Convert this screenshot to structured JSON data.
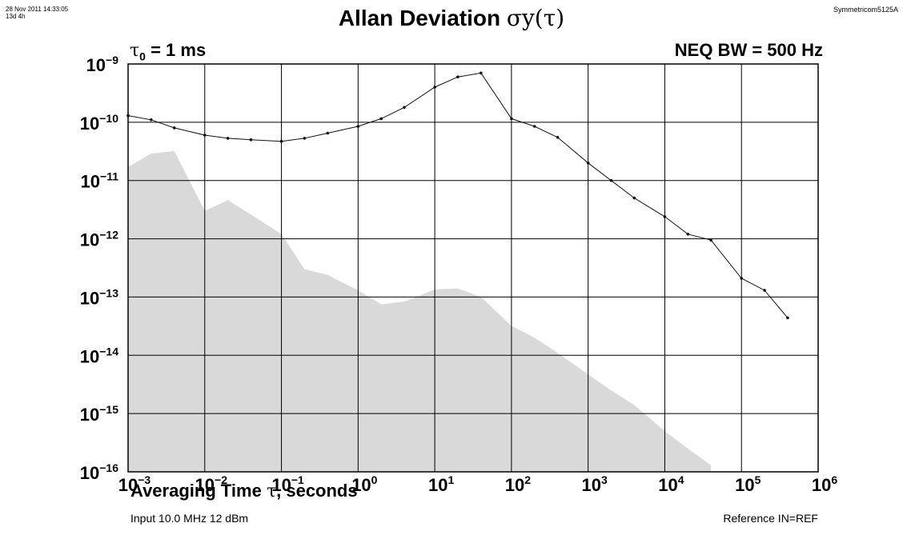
{
  "header": {
    "timestamp_line1": "28 Nov 2011 14:33:05",
    "timestamp_line2": "13d 4h",
    "title": "Allan Deviation",
    "title_symbol": "σy(τ)",
    "instrument": "Symmetricom5125A",
    "tau0_symbol": "τ",
    "tau0_sub": "0",
    "tau0_value": " = 1 ms",
    "neq_bw": "NEQ BW = 500 Hz"
  },
  "footer": {
    "xlabel_before": "Averaging Time ",
    "xlabel_symbol": "τ",
    "xlabel_after": ", seconds",
    "input": "Input 10.0 MHz 12 dBm",
    "reference": "Reference IN=REF"
  },
  "colors": {
    "line": "#111111",
    "noise_floor": "#d9d9d9",
    "grid": "#000000"
  },
  "chart_data": {
    "type": "line",
    "x_scale": "log",
    "y_scale": "log",
    "xlim": [
      0.001,
      1000000
    ],
    "ylim": [
      1e-16,
      1e-09
    ],
    "x_ticks": [
      {
        "base": "10",
        "exp": "−3",
        "value": 0.001
      },
      {
        "base": "10",
        "exp": "−2",
        "value": 0.01
      },
      {
        "base": "10",
        "exp": "−1",
        "value": 0.1
      },
      {
        "base": "10",
        "exp": "0",
        "value": 1
      },
      {
        "base": "10",
        "exp": "1",
        "value": 10
      },
      {
        "base": "10",
        "exp": "2",
        "value": 100
      },
      {
        "base": "10",
        "exp": "3",
        "value": 1000
      },
      {
        "base": "10",
        "exp": "4",
        "value": 10000
      },
      {
        "base": "10",
        "exp": "5",
        "value": 100000
      },
      {
        "base": "10",
        "exp": "6",
        "value": 1000000
      }
    ],
    "y_ticks": [
      {
        "base": "10",
        "exp": "−9",
        "value": 1e-09
      },
      {
        "base": "10",
        "exp": "−10",
        "value": 1e-10
      },
      {
        "base": "10",
        "exp": "−11",
        "value": 1e-11
      },
      {
        "base": "10",
        "exp": "−12",
        "value": 1e-12
      },
      {
        "base": "10",
        "exp": "−13",
        "value": 1e-13
      },
      {
        "base": "10",
        "exp": "−14",
        "value": 1e-14
      },
      {
        "base": "10",
        "exp": "−15",
        "value": 1e-15
      },
      {
        "base": "10",
        "exp": "−16",
        "value": 1e-16
      }
    ],
    "grid": true,
    "series": [
      {
        "kind": "line",
        "markers": true,
        "x": [
          0.001,
          0.002,
          0.004,
          0.01,
          0.02,
          0.04,
          0.1,
          0.2,
          0.4,
          1,
          2,
          4,
          10,
          20,
          40,
          100,
          200,
          400,
          1000,
          2000,
          4000,
          10000,
          20000,
          40000,
          100000,
          200000,
          400000
        ],
        "y": [
          1.3e-10,
          1.1e-10,
          8e-11,
          6e-11,
          5.3e-11,
          5e-11,
          4.7e-11,
          5.3e-11,
          6.5e-11,
          8.5e-11,
          1.15e-10,
          1.8e-10,
          4e-10,
          6e-10,
          7e-10,
          1.15e-10,
          8.5e-11,
          5.5e-11,
          2e-11,
          1e-11,
          5e-12,
          2.4e-12,
          1.2e-12,
          9.5e-13,
          2.1e-13,
          1.3e-13,
          4.4e-14
        ]
      },
      {
        "kind": "area",
        "x": [
          0.001,
          0.002,
          0.004,
          0.01,
          0.02,
          0.04,
          0.1,
          0.2,
          0.4,
          1,
          2,
          4,
          10,
          20,
          40,
          100,
          200,
          400,
          1000,
          2000,
          4000,
          10000,
          20000,
          40000
        ],
        "y": [
          1.7e-11,
          2.9e-11,
          3.2e-11,
          3e-12,
          4.6e-12,
          2.6e-12,
          1.2e-12,
          3e-13,
          2.4e-13,
          1.3e-13,
          7.5e-14,
          8.3e-14,
          1.35e-13,
          1.4e-13,
          1e-13,
          3.2e-14,
          2e-14,
          1.1e-14,
          4.7e-15,
          2.5e-15,
          1.4e-15,
          5e-16,
          2.5e-16,
          1.3e-16
        ]
      }
    ]
  }
}
